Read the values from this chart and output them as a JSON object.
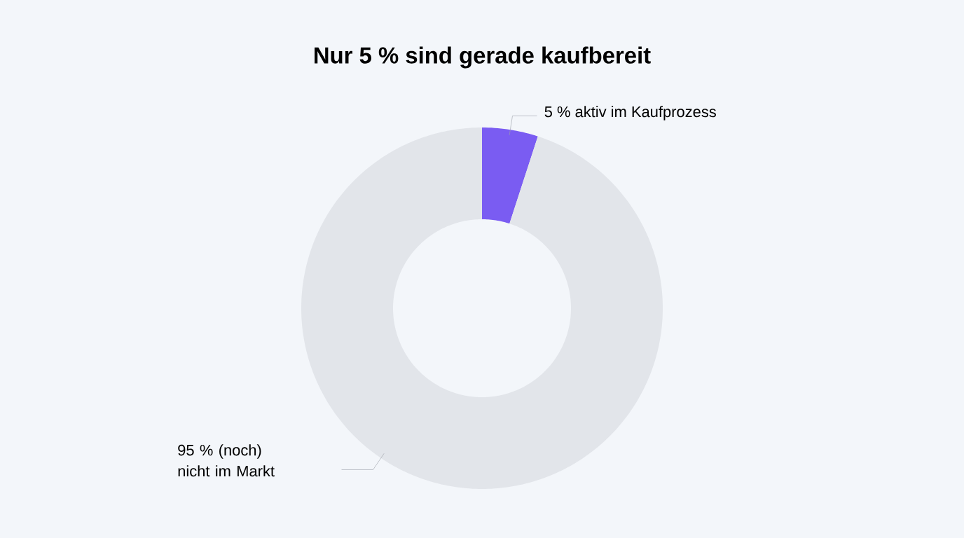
{
  "chart_data": {
    "type": "donut",
    "title": "Nur 5 % sind gerade kaufbereit",
    "categories": [
      "aktiv im Kaufprozess",
      "(noch) nicht im Markt"
    ],
    "values": [
      5,
      95
    ],
    "value_labels": [
      "5 %",
      "95 %"
    ],
    "colors": [
      "#7a5cf2",
      "#e2e5ea"
    ]
  }
}
